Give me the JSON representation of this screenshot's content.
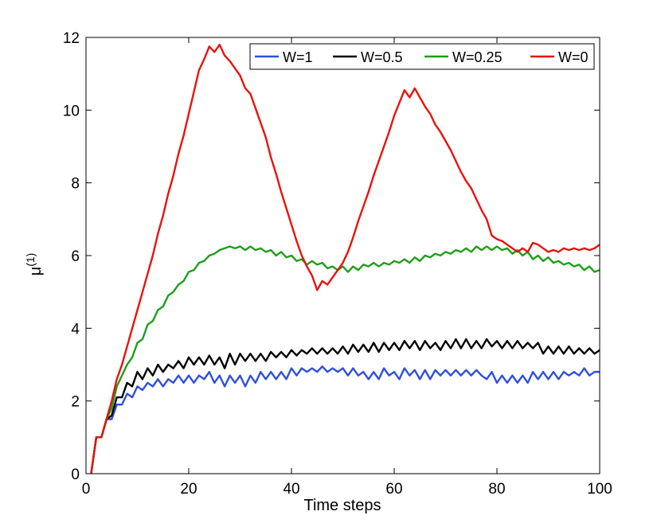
{
  "chart_data": {
    "type": "line",
    "title": "",
    "xlabel": "Time steps",
    "ylabel": "μ",
    "ylabel_superscript": "(1)",
    "xlim": [
      0,
      100
    ],
    "ylim": [
      0,
      12
    ],
    "xticks": [
      0,
      20,
      40,
      60,
      80,
      100
    ],
    "yticks": [
      0,
      2,
      4,
      6,
      8,
      10,
      12
    ],
    "grid": false,
    "legend_position": "top-right",
    "x": [
      1,
      2,
      3,
      4,
      5,
      6,
      7,
      8,
      9,
      10,
      11,
      12,
      13,
      14,
      15,
      16,
      17,
      18,
      19,
      20,
      21,
      22,
      23,
      24,
      25,
      26,
      27,
      28,
      29,
      30,
      31,
      32,
      33,
      34,
      35,
      36,
      37,
      38,
      39,
      40,
      41,
      42,
      43,
      44,
      45,
      46,
      47,
      48,
      49,
      50,
      51,
      52,
      53,
      54,
      55,
      56,
      57,
      58,
      59,
      60,
      61,
      62,
      63,
      64,
      65,
      66,
      67,
      68,
      69,
      70,
      71,
      72,
      73,
      74,
      75,
      76,
      77,
      78,
      79,
      80,
      81,
      82,
      83,
      84,
      85,
      86,
      87,
      88,
      89,
      90,
      91,
      92,
      93,
      94,
      95,
      96,
      97,
      98,
      99,
      100
    ],
    "series": [
      {
        "name": "W=1",
        "color": "#2f4fe0",
        "values": [
          0,
          1,
          1,
          1.5,
          1.5,
          1.9,
          1.9,
          2.2,
          2.1,
          2.4,
          2.3,
          2.5,
          2.4,
          2.6,
          2.4,
          2.6,
          2.5,
          2.7,
          2.5,
          2.7,
          2.5,
          2.7,
          2.6,
          2.8,
          2.5,
          2.7,
          2.4,
          2.7,
          2.5,
          2.7,
          2.4,
          2.7,
          2.5,
          2.8,
          2.6,
          2.8,
          2.6,
          2.8,
          2.6,
          2.9,
          2.7,
          2.9,
          2.8,
          2.9,
          2.8,
          2.95,
          2.8,
          2.9,
          2.8,
          2.9,
          2.7,
          2.9,
          2.7,
          2.8,
          2.6,
          2.8,
          2.6,
          2.9,
          2.7,
          2.8,
          2.6,
          2.9,
          2.7,
          2.85,
          2.6,
          2.85,
          2.6,
          2.85,
          2.7,
          2.85,
          2.7,
          2.85,
          2.7,
          2.85,
          2.7,
          2.85,
          2.7,
          2.6,
          2.8,
          2.5,
          2.7,
          2.5,
          2.7,
          2.5,
          2.7,
          2.5,
          2.8,
          2.6,
          2.8,
          2.6,
          2.8,
          2.6,
          2.8,
          2.7,
          2.8,
          2.7,
          2.9,
          2.7,
          2.8,
          2.8
        ]
      },
      {
        "name": "W=0.5",
        "color": "#000000",
        "values": [
          0,
          1,
          1,
          1.5,
          1.6,
          2.1,
          2.1,
          2.5,
          2.4,
          2.8,
          2.6,
          2.9,
          2.7,
          3,
          2.8,
          3,
          2.9,
          3.1,
          2.9,
          3.2,
          3,
          3.2,
          3,
          3.25,
          3,
          3.2,
          2.9,
          3.3,
          3,
          3.3,
          3.1,
          3.3,
          3.1,
          3.3,
          3.1,
          3.35,
          3.2,
          3.35,
          3.2,
          3.4,
          3.25,
          3.4,
          3.3,
          3.45,
          3.3,
          3.45,
          3.3,
          3.45,
          3.3,
          3.5,
          3.3,
          3.55,
          3.35,
          3.55,
          3.35,
          3.6,
          3.35,
          3.6,
          3.4,
          3.6,
          3.4,
          3.65,
          3.45,
          3.65,
          3.4,
          3.65,
          3.45,
          3.6,
          3.4,
          3.65,
          3.45,
          3.7,
          3.45,
          3.7,
          3.45,
          3.65,
          3.45,
          3.7,
          3.5,
          3.65,
          3.45,
          3.65,
          3.45,
          3.65,
          3.45,
          3.6,
          3.45,
          3.6,
          3.3,
          3.5,
          3.3,
          3.5,
          3.3,
          3.5,
          3.3,
          3.45,
          3.3,
          3.45,
          3.3,
          3.4
        ]
      },
      {
        "name": "W=0.25",
        "color": "#1f9e1a",
        "values": [
          0,
          1,
          1,
          1.5,
          1.8,
          2.4,
          2.7,
          3,
          3.2,
          3.6,
          3.7,
          4.1,
          4.2,
          4.5,
          4.6,
          4.9,
          5,
          5.2,
          5.3,
          5.55,
          5.6,
          5.8,
          5.85,
          6,
          6.05,
          6.15,
          6.2,
          6.25,
          6.2,
          6.25,
          6.15,
          6.25,
          6.15,
          6.2,
          6.1,
          6.15,
          6,
          6.1,
          5.95,
          6,
          5.85,
          5.9,
          5.75,
          5.85,
          5.75,
          5.8,
          5.65,
          5.7,
          5.6,
          5.7,
          5.55,
          5.7,
          5.6,
          5.75,
          5.7,
          5.8,
          5.7,
          5.8,
          5.75,
          5.85,
          5.8,
          5.9,
          5.8,
          5.95,
          5.85,
          6,
          5.95,
          6.05,
          6,
          6.1,
          6.05,
          6.15,
          6.1,
          6.2,
          6.1,
          6.25,
          6.15,
          6.25,
          6.15,
          6.25,
          6.15,
          6.2,
          6.05,
          6.15,
          6,
          6.1,
          5.9,
          6,
          5.85,
          5.95,
          5.8,
          5.85,
          5.75,
          5.8,
          5.7,
          5.75,
          5.6,
          5.7,
          5.55,
          5.6
        ]
      },
      {
        "name": "W=0",
        "color": "#e8120e",
        "values": [
          0,
          1,
          1,
          1.5,
          2,
          2.6,
          3,
          3.5,
          4,
          4.5,
          5,
          5.5,
          6,
          6.6,
          7.1,
          7.7,
          8.2,
          8.8,
          9.3,
          9.9,
          10.5,
          11.1,
          11.4,
          11.75,
          11.6,
          11.8,
          11.5,
          11.35,
          11.15,
          10.95,
          10.6,
          10.45,
          10.05,
          9.65,
          9.25,
          8.7,
          8.25,
          7.75,
          7.3,
          6.85,
          6.4,
          6,
          5.7,
          5.45,
          5.05,
          5.3,
          5.2,
          5.4,
          5.6,
          5.8,
          6.1,
          6.5,
          6.95,
          7.35,
          7.75,
          8.2,
          8.6,
          9,
          9.4,
          9.85,
          10.2,
          10.55,
          10.35,
          10.6,
          10.35,
          10.1,
          9.9,
          9.6,
          9.4,
          9.15,
          8.9,
          8.6,
          8.3,
          8.05,
          7.85,
          7.55,
          7.25,
          7,
          6.55,
          6.45,
          6.4,
          6.3,
          6.2,
          6.1,
          6.2,
          6.1,
          6.35,
          6.3,
          6.2,
          6.1,
          6.15,
          6.1,
          6.2,
          6.15,
          6.2,
          6.15,
          6.2,
          6.15,
          6.2,
          6.3
        ]
      }
    ]
  }
}
